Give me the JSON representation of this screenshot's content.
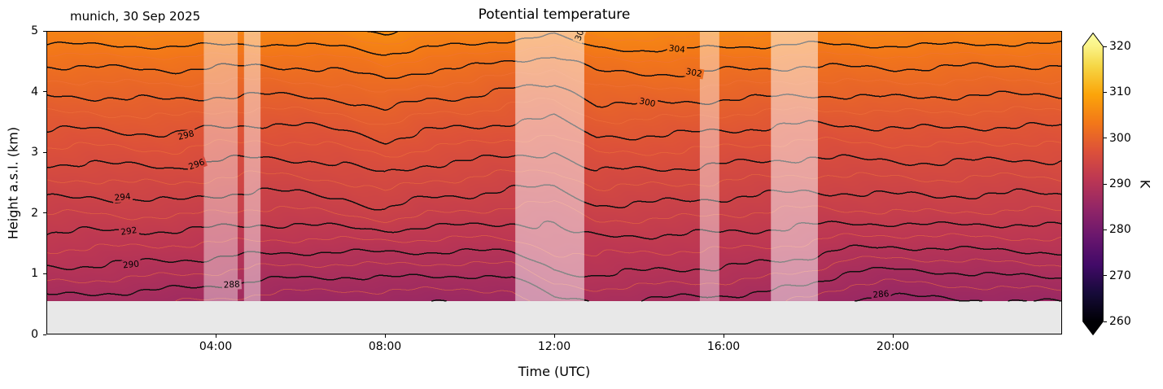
{
  "chart_data": {
    "type": "heatmap",
    "title": "Potential temperature",
    "annotation": "munich, 30 Sep 2025",
    "xlabel": "Time (UTC)",
    "ylabel": "Height a.s.l. (km)",
    "colorbar_label": "K",
    "x_range_hours": [
      0,
      24
    ],
    "y_range_km": [
      0,
      5
    ],
    "surface_height_km": 0.55,
    "surface_color": "#e8e8e8",
    "x_ticks": [
      {
        "label": "04:00",
        "hour": 4
      },
      {
        "label": "08:00",
        "hour": 8
      },
      {
        "label": "12:00",
        "hour": 12
      },
      {
        "label": "16:00",
        "hour": 16
      },
      {
        "label": "20:00",
        "hour": 20
      }
    ],
    "y_ticks": [
      0,
      1,
      2,
      3,
      4,
      5
    ],
    "colorbar_ticks": [
      260,
      270,
      280,
      290,
      300,
      310,
      320
    ],
    "colormap": {
      "name": "inferno",
      "domain": [
        260,
        322
      ],
      "stops": [
        "#000004",
        "#160b39",
        "#420a68",
        "#6a176e",
        "#932667",
        "#bc3754",
        "#dd513a",
        "#f37819",
        "#fca50a",
        "#f6d746",
        "#fcffa4"
      ]
    },
    "contour_interval_major_K": 2,
    "contour_interval_minor_K": 1,
    "contour_labels": [
      {
        "level": 290,
        "t": 2.0,
        "z": 1.15,
        "rot": -6
      },
      {
        "level": 292,
        "t": 1.95,
        "z": 1.7,
        "rot": -8
      },
      {
        "level": 294,
        "t": 1.8,
        "z": 2.26,
        "rot": -6
      },
      {
        "level": 296,
        "t": 3.55,
        "z": 2.8,
        "rot": -20
      },
      {
        "level": 298,
        "t": 3.3,
        "z": 3.28,
        "rot": -14
      },
      {
        "level": 288,
        "t": 4.38,
        "z": 0.82,
        "rot": -3
      },
      {
        "level": 300,
        "t": 14.2,
        "z": 3.82,
        "rot": 12
      },
      {
        "level": 302,
        "t": 15.3,
        "z": 4.31,
        "rot": 10
      },
      {
        "level": 304,
        "t": 14.9,
        "z": 4.7,
        "rot": 6
      },
      {
        "level": 304,
        "t": 12.62,
        "z": 4.97,
        "rot": -70
      },
      {
        "level": 286,
        "t": 19.72,
        "z": 0.66,
        "rot": -5
      }
    ],
    "masked_intervals_hours": [
      {
        "start": 3.72,
        "end": 4.52,
        "alpha": 0.4
      },
      {
        "start": 4.67,
        "end": 5.06,
        "alpha": 0.45
      },
      {
        "start": 11.08,
        "end": 12.71,
        "alpha": 0.5
      },
      {
        "start": 15.44,
        "end": 15.9,
        "alpha": 0.42
      },
      {
        "start": 17.12,
        "end": 18.23,
        "alpha": 0.5
      }
    ],
    "wiggle": {
      "a1": 0.09,
      "p1": 0.85,
      "a2": 0.16,
      "p2": 2.9
    },
    "grid": {
      "times_hours": [
        0,
        1,
        2,
        3,
        4,
        5,
        6,
        7,
        8,
        9,
        10,
        11,
        12,
        13,
        14,
        15,
        16,
        17,
        18,
        19,
        20,
        21,
        22,
        23,
        24
      ],
      "heights_km": [
        0.55,
        1.0,
        1.5,
        2.0,
        2.5,
        3.0,
        3.5,
        4.0,
        4.5,
        5.0
      ],
      "theta_K": [
        [
          287.6,
          287.5,
          287.3,
          287.1,
          286.9,
          286.5,
          286.3,
          286.2,
          286.3,
          286.2,
          286.1,
          286.3,
          287.8,
          288.1,
          287.9,
          287.7,
          287.6,
          287.3,
          286.8,
          285.8,
          285.6,
          285.8,
          285.9,
          286.0,
          286.1
        ],
        [
          289.6,
          289.5,
          289.3,
          289.1,
          288.9,
          288.5,
          288.3,
          288.2,
          288.3,
          288.2,
          288.1,
          288.3,
          289.8,
          290.1,
          289.9,
          289.7,
          289.6,
          289.3,
          288.8,
          287.8,
          287.6,
          287.8,
          288.0,
          288.2,
          288.3
        ],
        [
          291.4,
          291.3,
          291.2,
          291.1,
          291.0,
          290.8,
          290.7,
          290.7,
          290.7,
          290.7,
          290.6,
          290.7,
          291.5,
          291.6,
          291.5,
          291.4,
          291.4,
          291.2,
          291.0,
          290.4,
          290.3,
          290.4,
          290.5,
          290.6,
          290.7
        ],
        [
          293.1,
          293.0,
          293.2,
          293.3,
          292.9,
          292.7,
          292.8,
          293.1,
          293.7,
          293.1,
          292.9,
          292.6,
          292.4,
          293.5,
          293.4,
          293.3,
          293.1,
          292.9,
          292.7,
          292.8,
          292.9,
          293.0,
          292.9,
          292.8,
          292.9
        ],
        [
          294.9,
          294.8,
          295.0,
          295.1,
          294.7,
          294.5,
          294.6,
          294.9,
          295.5,
          294.9,
          294.7,
          294.4,
          294.2,
          295.3,
          295.2,
          295.1,
          294.9,
          294.7,
          294.5,
          294.6,
          294.7,
          294.8,
          294.7,
          294.6,
          294.7
        ],
        [
          296.7,
          296.6,
          296.8,
          296.9,
          296.5,
          296.3,
          296.4,
          296.7,
          297.3,
          296.7,
          296.5,
          296.2,
          296.0,
          297.1,
          297.0,
          296.9,
          296.7,
          296.5,
          296.3,
          296.4,
          296.5,
          296.6,
          296.5,
          296.4,
          296.5
        ],
        [
          298.5,
          298.4,
          298.6,
          298.7,
          298.3,
          298.1,
          298.2,
          298.5,
          299.1,
          298.5,
          298.3,
          298.0,
          297.8,
          298.9,
          298.8,
          298.7,
          298.5,
          298.3,
          298.1,
          298.2,
          298.3,
          298.4,
          298.3,
          298.2,
          298.3
        ],
        [
          300.2,
          300.3,
          300.4,
          300.5,
          300.3,
          300.2,
          300.3,
          300.5,
          301.2,
          300.5,
          300.3,
          299.8,
          299.4,
          300.6,
          300.8,
          300.7,
          300.5,
          300.4,
          300.2,
          300.3,
          300.4,
          300.3,
          300.2,
          300.2,
          300.2
        ],
        [
          302.3,
          302.4,
          302.5,
          302.6,
          302.4,
          302.3,
          302.4,
          302.6,
          303.3,
          302.6,
          302.4,
          301.9,
          301.5,
          302.7,
          302.9,
          302.8,
          302.6,
          302.5,
          302.3,
          302.4,
          302.5,
          302.4,
          302.3,
          302.3,
          302.3
        ],
        [
          305.2,
          305.3,
          305.4,
          305.5,
          305.3,
          305.2,
          305.3,
          305.5,
          306.2,
          305.5,
          305.3,
          304.8,
          304.4,
          305.6,
          305.8,
          305.7,
          305.5,
          305.4,
          305.2,
          305.3,
          305.4,
          305.3,
          305.2,
          305.2,
          305.2
        ]
      ]
    }
  }
}
